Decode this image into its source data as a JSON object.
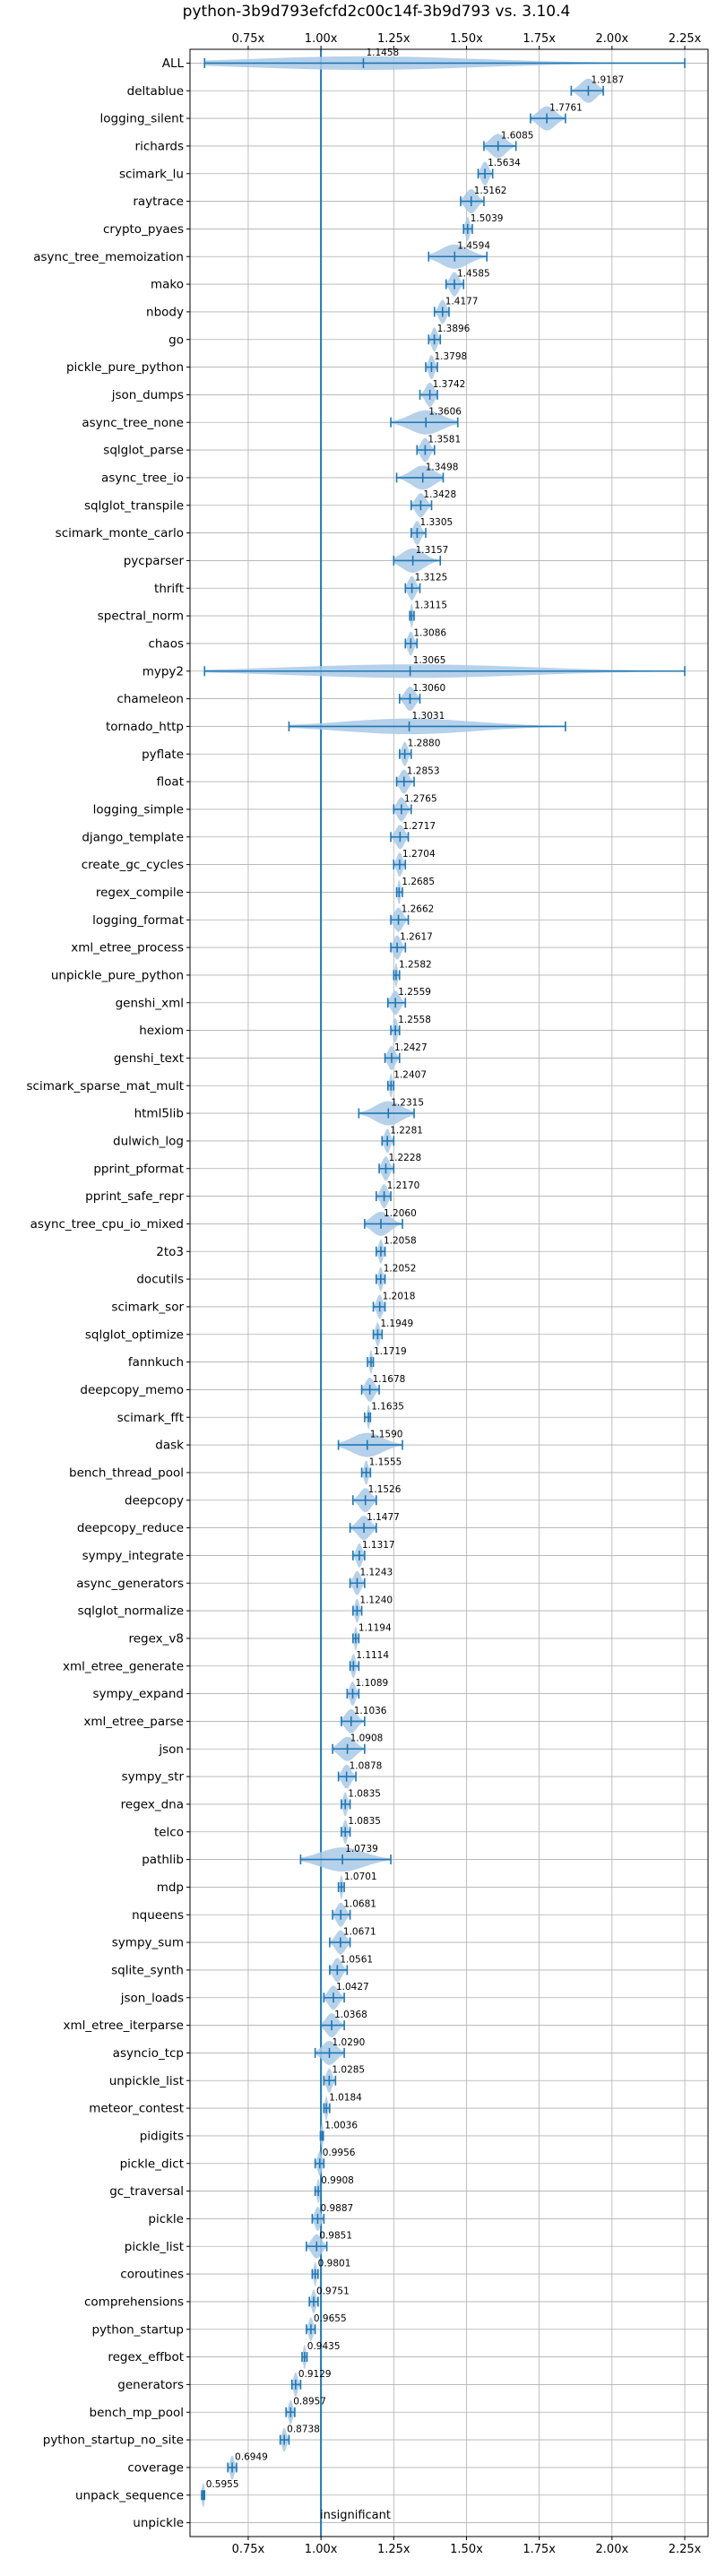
{
  "chart_data": {
    "type": "violin",
    "title": "python-3b9d793efcfd2c00c14f-3b9d793 vs. 3.10.4",
    "xlabel": "",
    "ylabel": "",
    "xlim": [
      0.55,
      2.33
    ],
    "xticks": [
      0.75,
      1.0,
      1.25,
      1.5,
      1.75,
      2.0,
      2.25
    ],
    "xtick_labels": [
      "0.75x",
      "1.00x",
      "1.25x",
      "1.50x",
      "1.75x",
      "2.00x",
      "2.25x"
    ],
    "ticks_top_and_bottom": true,
    "grid": true,
    "reference_line": 1.0,
    "annotation": "insignificant",
    "colors": {
      "violin": "#a9c9e6",
      "line": "#1f77b4",
      "grid": "#b0b0b0"
    },
    "benchmarks": [
      {
        "name": "ALL",
        "label": "1.1458",
        "median": 1.1458,
        "min": 0.6,
        "max": 2.25
      },
      {
        "name": "deltablue",
        "label": "1.9187",
        "median": 1.9187,
        "min": 1.86,
        "max": 1.97
      },
      {
        "name": "logging_silent",
        "label": "1.7761",
        "median": 1.7761,
        "min": 1.72,
        "max": 1.84
      },
      {
        "name": "richards",
        "label": "1.6085",
        "median": 1.6085,
        "min": 1.56,
        "max": 1.67
      },
      {
        "name": "scimark_lu",
        "label": "1.5634",
        "median": 1.5634,
        "min": 1.54,
        "max": 1.59
      },
      {
        "name": "raytrace",
        "label": "1.5162",
        "median": 1.5162,
        "min": 1.48,
        "max": 1.56
      },
      {
        "name": "crypto_pyaes",
        "label": "1.5039",
        "median": 1.5039,
        "min": 1.49,
        "max": 1.52
      },
      {
        "name": "async_tree_memoization",
        "label": "1.4594",
        "median": 1.4594,
        "min": 1.37,
        "max": 1.57
      },
      {
        "name": "mako",
        "label": "1.4585",
        "median": 1.4585,
        "min": 1.43,
        "max": 1.49
      },
      {
        "name": "nbody",
        "label": "1.4177",
        "median": 1.4177,
        "min": 1.39,
        "max": 1.44
      },
      {
        "name": "go",
        "label": "1.3896",
        "median": 1.3896,
        "min": 1.37,
        "max": 1.41
      },
      {
        "name": "pickle_pure_python",
        "label": "1.3798",
        "median": 1.3798,
        "min": 1.36,
        "max": 1.4
      },
      {
        "name": "json_dumps",
        "label": "1.3742",
        "median": 1.3742,
        "min": 1.34,
        "max": 1.4
      },
      {
        "name": "async_tree_none",
        "label": "1.3606",
        "median": 1.3606,
        "min": 1.24,
        "max": 1.47
      },
      {
        "name": "sqlglot_parse",
        "label": "1.3581",
        "median": 1.3581,
        "min": 1.33,
        "max": 1.39
      },
      {
        "name": "async_tree_io",
        "label": "1.3498",
        "median": 1.3498,
        "min": 1.26,
        "max": 1.42
      },
      {
        "name": "sqlglot_transpile",
        "label": "1.3428",
        "median": 1.3428,
        "min": 1.31,
        "max": 1.38
      },
      {
        "name": "scimark_monte_carlo",
        "label": "1.3305",
        "median": 1.3305,
        "min": 1.31,
        "max": 1.36
      },
      {
        "name": "pycparser",
        "label": "1.3157",
        "median": 1.3157,
        "min": 1.25,
        "max": 1.41
      },
      {
        "name": "thrift",
        "label": "1.3125",
        "median": 1.3125,
        "min": 1.29,
        "max": 1.34
      },
      {
        "name": "spectral_norm",
        "label": "1.3115",
        "median": 1.3115,
        "min": 1.305,
        "max": 1.32
      },
      {
        "name": "chaos",
        "label": "1.3086",
        "median": 1.3086,
        "min": 1.29,
        "max": 1.33
      },
      {
        "name": "mypy2",
        "label": "1.3065",
        "median": 1.3065,
        "min": 0.6,
        "max": 2.25
      },
      {
        "name": "chameleon",
        "label": "1.3060",
        "median": 1.306,
        "min": 1.27,
        "max": 1.34
      },
      {
        "name": "tornado_http",
        "label": "1.3031",
        "median": 1.3031,
        "min": 0.89,
        "max": 1.84
      },
      {
        "name": "pyflate",
        "label": "1.2880",
        "median": 1.288,
        "min": 1.27,
        "max": 1.31
      },
      {
        "name": "float",
        "label": "1.2853",
        "median": 1.2853,
        "min": 1.26,
        "max": 1.32
      },
      {
        "name": "logging_simple",
        "label": "1.2765",
        "median": 1.2765,
        "min": 1.25,
        "max": 1.31
      },
      {
        "name": "django_template",
        "label": "1.2717",
        "median": 1.2717,
        "min": 1.24,
        "max": 1.3
      },
      {
        "name": "create_gc_cycles",
        "label": "1.2704",
        "median": 1.2704,
        "min": 1.25,
        "max": 1.29
      },
      {
        "name": "regex_compile",
        "label": "1.2685",
        "median": 1.2685,
        "min": 1.26,
        "max": 1.28
      },
      {
        "name": "logging_format",
        "label": "1.2662",
        "median": 1.2662,
        "min": 1.24,
        "max": 1.3
      },
      {
        "name": "xml_etree_process",
        "label": "1.2617",
        "median": 1.2617,
        "min": 1.24,
        "max": 1.29
      },
      {
        "name": "unpickle_pure_python",
        "label": "1.2582",
        "median": 1.2582,
        "min": 1.25,
        "max": 1.27
      },
      {
        "name": "genshi_xml",
        "label": "1.2559",
        "median": 1.2559,
        "min": 1.23,
        "max": 1.29
      },
      {
        "name": "hexiom",
        "label": "1.2558",
        "median": 1.2558,
        "min": 1.24,
        "max": 1.27
      },
      {
        "name": "genshi_text",
        "label": "1.2427",
        "median": 1.2427,
        "min": 1.22,
        "max": 1.27
      },
      {
        "name": "scimark_sparse_mat_mult",
        "label": "1.2407",
        "median": 1.2407,
        "min": 1.23,
        "max": 1.25
      },
      {
        "name": "html5lib",
        "label": "1.2315",
        "median": 1.2315,
        "min": 1.13,
        "max": 1.32
      },
      {
        "name": "dulwich_log",
        "label": "1.2281",
        "median": 1.2281,
        "min": 1.21,
        "max": 1.25
      },
      {
        "name": "pprint_pformat",
        "label": "1.2228",
        "median": 1.2228,
        "min": 1.2,
        "max": 1.25
      },
      {
        "name": "pprint_safe_repr",
        "label": "1.2170",
        "median": 1.217,
        "min": 1.19,
        "max": 1.24
      },
      {
        "name": "async_tree_cpu_io_mixed",
        "label": "1.2060",
        "median": 1.206,
        "min": 1.15,
        "max": 1.28
      },
      {
        "name": "2to3",
        "label": "1.2058",
        "median": 1.2058,
        "min": 1.19,
        "max": 1.22
      },
      {
        "name": "docutils",
        "label": "1.2052",
        "median": 1.2052,
        "min": 1.19,
        "max": 1.22
      },
      {
        "name": "scimark_sor",
        "label": "1.2018",
        "median": 1.2018,
        "min": 1.18,
        "max": 1.22
      },
      {
        "name": "sqlglot_optimize",
        "label": "1.1949",
        "median": 1.1949,
        "min": 1.18,
        "max": 1.21
      },
      {
        "name": "fannkuch",
        "label": "1.1719",
        "median": 1.1719,
        "min": 1.16,
        "max": 1.18
      },
      {
        "name": "deepcopy_memo",
        "label": "1.1678",
        "median": 1.1678,
        "min": 1.14,
        "max": 1.2
      },
      {
        "name": "scimark_fft",
        "label": "1.1635",
        "median": 1.1635,
        "min": 1.15,
        "max": 1.17
      },
      {
        "name": "dask",
        "label": "1.1590",
        "median": 1.159,
        "min": 1.06,
        "max": 1.28
      },
      {
        "name": "bench_thread_pool",
        "label": "1.1555",
        "median": 1.1555,
        "min": 1.14,
        "max": 1.17
      },
      {
        "name": "deepcopy",
        "label": "1.1526",
        "median": 1.1526,
        "min": 1.11,
        "max": 1.19
      },
      {
        "name": "deepcopy_reduce",
        "label": "1.1477",
        "median": 1.1477,
        "min": 1.1,
        "max": 1.19
      },
      {
        "name": "sympy_integrate",
        "label": "1.1317",
        "median": 1.1317,
        "min": 1.11,
        "max": 1.15
      },
      {
        "name": "async_generators",
        "label": "1.1243",
        "median": 1.1243,
        "min": 1.1,
        "max": 1.15
      },
      {
        "name": "sqlglot_normalize",
        "label": "1.1240",
        "median": 1.124,
        "min": 1.11,
        "max": 1.14
      },
      {
        "name": "regex_v8",
        "label": "1.1194",
        "median": 1.1194,
        "min": 1.11,
        "max": 1.13
      },
      {
        "name": "xml_etree_generate",
        "label": "1.1114",
        "median": 1.1114,
        "min": 1.1,
        "max": 1.13
      },
      {
        "name": "sympy_expand",
        "label": "1.1089",
        "median": 1.1089,
        "min": 1.09,
        "max": 1.13
      },
      {
        "name": "xml_etree_parse",
        "label": "1.1036",
        "median": 1.1036,
        "min": 1.07,
        "max": 1.15
      },
      {
        "name": "json",
        "label": "1.0908",
        "median": 1.0908,
        "min": 1.04,
        "max": 1.15
      },
      {
        "name": "sympy_str",
        "label": "1.0878",
        "median": 1.0878,
        "min": 1.06,
        "max": 1.12
      },
      {
        "name": "regex_dna",
        "label": "1.0835",
        "median": 1.0835,
        "min": 1.07,
        "max": 1.1
      },
      {
        "name": "telco",
        "label": "1.0835",
        "median": 1.0835,
        "min": 1.07,
        "max": 1.1
      },
      {
        "name": "pathlib",
        "label": "1.0739",
        "median": 1.0739,
        "min": 0.93,
        "max": 1.24
      },
      {
        "name": "mdp",
        "label": "1.0701",
        "median": 1.0701,
        "min": 1.06,
        "max": 1.08
      },
      {
        "name": "nqueens",
        "label": "1.0681",
        "median": 1.0681,
        "min": 1.04,
        "max": 1.1
      },
      {
        "name": "sympy_sum",
        "label": "1.0671",
        "median": 1.0671,
        "min": 1.03,
        "max": 1.1
      },
      {
        "name": "sqlite_synth",
        "label": "1.0561",
        "median": 1.0561,
        "min": 1.03,
        "max": 1.09
      },
      {
        "name": "json_loads",
        "label": "1.0427",
        "median": 1.0427,
        "min": 1.01,
        "max": 1.08
      },
      {
        "name": "xml_etree_iterparse",
        "label": "1.0368",
        "median": 1.0368,
        "min": 1.0,
        "max": 1.08
      },
      {
        "name": "asyncio_tcp",
        "label": "1.0290",
        "median": 1.029,
        "min": 0.98,
        "max": 1.08
      },
      {
        "name": "unpickle_list",
        "label": "1.0285",
        "median": 1.0285,
        "min": 1.01,
        "max": 1.05
      },
      {
        "name": "meteor_contest",
        "label": "1.0184",
        "median": 1.0184,
        "min": 1.01,
        "max": 1.03
      },
      {
        "name": "pidigits",
        "label": "1.0036",
        "median": 1.0036,
        "min": 0.998,
        "max": 1.008
      },
      {
        "name": "pickle_dict",
        "label": "0.9956",
        "median": 0.9956,
        "min": 0.98,
        "max": 1.01
      },
      {
        "name": "gc_traversal",
        "label": "0.9908",
        "median": 0.9908,
        "min": 0.98,
        "max": 1.0
      },
      {
        "name": "pickle",
        "label": "0.9887",
        "median": 0.9887,
        "min": 0.97,
        "max": 1.01
      },
      {
        "name": "pickle_list",
        "label": "0.9851",
        "median": 0.9851,
        "min": 0.95,
        "max": 1.02
      },
      {
        "name": "coroutines",
        "label": "0.9801",
        "median": 0.9801,
        "min": 0.97,
        "max": 0.99
      },
      {
        "name": "comprehensions",
        "label": "0.9751",
        "median": 0.9751,
        "min": 0.96,
        "max": 0.99
      },
      {
        "name": "python_startup",
        "label": "0.9655",
        "median": 0.9655,
        "min": 0.95,
        "max": 0.98
      },
      {
        "name": "regex_effbot",
        "label": "0.9435",
        "median": 0.9435,
        "min": 0.935,
        "max": 0.952
      },
      {
        "name": "generators",
        "label": "0.9129",
        "median": 0.9129,
        "min": 0.9,
        "max": 0.93
      },
      {
        "name": "bench_mp_pool",
        "label": "0.8957",
        "median": 0.8957,
        "min": 0.88,
        "max": 0.91
      },
      {
        "name": "python_startup_no_site",
        "label": "0.8738",
        "median": 0.8738,
        "min": 0.86,
        "max": 0.89
      },
      {
        "name": "coverage",
        "label": "0.6949",
        "median": 0.6949,
        "min": 0.68,
        "max": 0.71
      },
      {
        "name": "unpack_sequence",
        "label": "0.5955",
        "median": 0.5955,
        "min": 0.59,
        "max": 0.6
      },
      {
        "name": "unpickle",
        "label": "",
        "median": null,
        "min": null,
        "max": null
      }
    ]
  }
}
